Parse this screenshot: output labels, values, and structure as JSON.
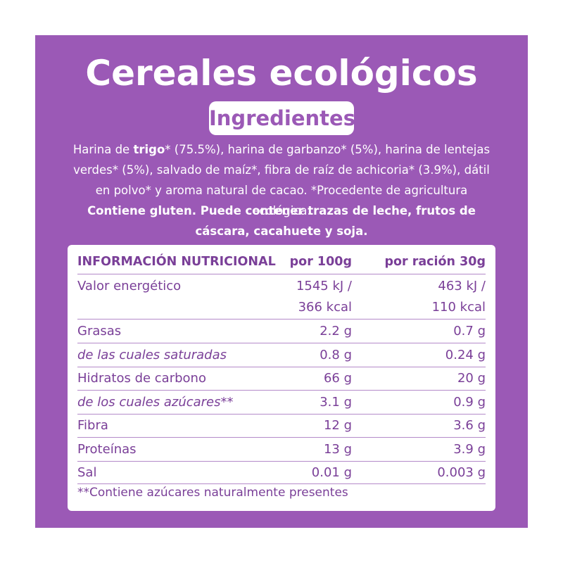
{
  "title": "Cereales ecológicos",
  "badge": "Ingredientes",
  "ingredients": {
    "pre": "Harina de ",
    "bold": "trigo",
    "post": "* (75.5%), harina de garbanzo* (5%), harina de lentejas verdes* (5%), salvado de maíz*, fibra de raíz de achicoria* (3.9%), dátil en polvo* y aroma natural de cacao. *Procedente de agricultura ecológica."
  },
  "warning": "Contiene gluten. Puede contener trazas de leche, frutos de cáscara, cacahuete y soja.",
  "table": {
    "headers": [
      "INFORMACIÓN NUTRICIONAL",
      "por 100g",
      "por ración 30g"
    ],
    "energy": {
      "label": "Valor energético",
      "per100_kj": "1545 kJ /",
      "per100_kcal": "366 kcal",
      "per30_kj": "463 kJ /",
      "per30_kcal": "110 kcal"
    },
    "rows": [
      {
        "label": "Grasas",
        "per100": "2.2 g",
        "per30": "0.7 g"
      },
      {
        "label": "de las cuales saturadas",
        "per100": "0.8 g",
        "per30": "0.24 g"
      },
      {
        "label": "Hidratos de carbono",
        "per100": "66 g",
        "per30": "20 g"
      },
      {
        "label": "de los cuales azúcares**",
        "per100": "3.1 g",
        "per30": "0.9 g"
      },
      {
        "label": "Fibra",
        "per100": "12 g",
        "per30": "3.6 g"
      },
      {
        "label": "Proteínas",
        "per100": "13 g",
        "per30": "3.9 g"
      },
      {
        "label": "Sal",
        "per100": "0.01 g",
        "per30": "0.003 g"
      }
    ],
    "footnote": "**Contiene azúcares naturalmente presentes"
  },
  "colors": {
    "brand": "#9b59b6",
    "text_on_white": "#7a3f98",
    "divider": "#b48ac9"
  }
}
